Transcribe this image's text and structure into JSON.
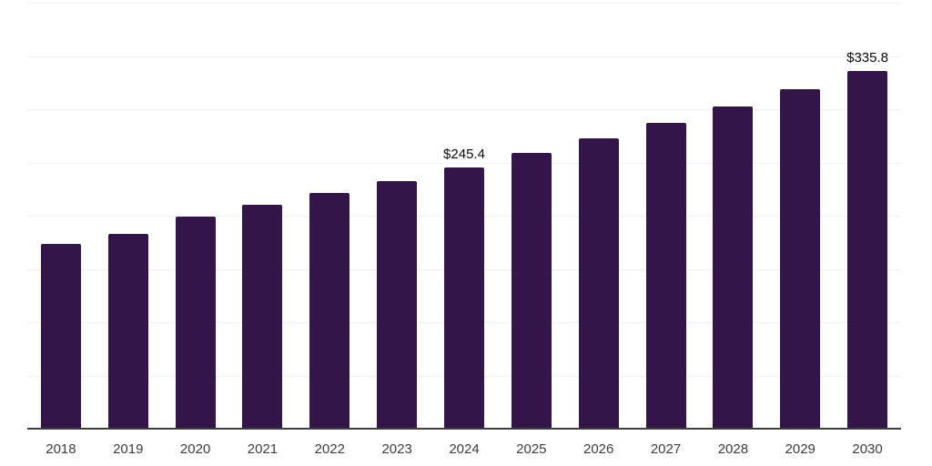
{
  "chart_data": {
    "type": "bar",
    "title": "",
    "xlabel": "",
    "ylabel": "",
    "categories": [
      "2018",
      "2019",
      "2020",
      "2021",
      "2022",
      "2023",
      "2024",
      "2025",
      "2026",
      "2027",
      "2028",
      "2029",
      "2030"
    ],
    "values": [
      173.9,
      182.6,
      199.5,
      210.6,
      221.3,
      232.9,
      245.4,
      258.6,
      272.5,
      287.1,
      302.6,
      318.8,
      335.8
    ],
    "data_labels": {
      "2024": "$245.4",
      "2030": "$335.8"
    },
    "ylim": [
      0,
      400
    ],
    "grid_step": 50,
    "grid": "horizontal-only",
    "legend": "none",
    "y_axis_labels_visible": false
  },
  "colors": {
    "bar": "#32164a",
    "gridline": "#efefef",
    "axis_line": "#3f3f3f",
    "tick_label": "#3d3d3d",
    "data_label": "#0a0a0a",
    "background": "#ffffff"
  }
}
